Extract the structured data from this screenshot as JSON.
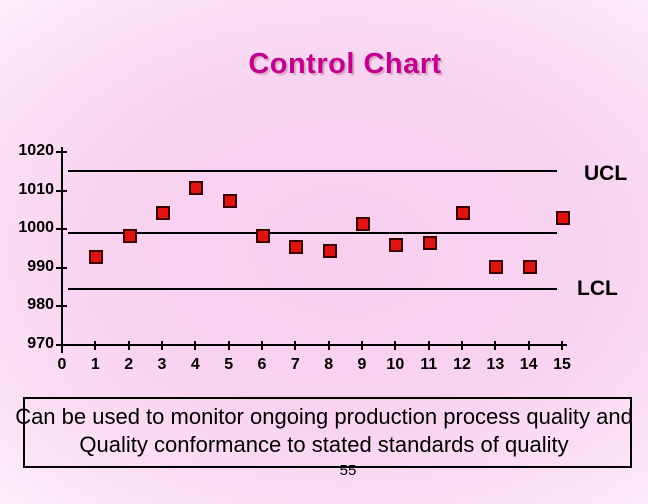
{
  "slide": {
    "title": "Control Chart",
    "caption_line1": "Can be used to monitor ongoing production process quality and",
    "caption_line2": "Quality conformance to stated standards of quality",
    "page_number": "55"
  },
  "chart_data": {
    "type": "scatter",
    "title": "Control Chart",
    "xlabel": "",
    "ylabel": "",
    "x": [
      1,
      2,
      3,
      4,
      5,
      6,
      7,
      8,
      9,
      10,
      11,
      12,
      13,
      14,
      15
    ],
    "values": [
      993,
      998.5,
      1004.5,
      1011,
      1007.5,
      998.5,
      995.5,
      994.5,
      1001.5,
      996,
      996.5,
      1004.5,
      990.5,
      990.5,
      1003
    ],
    "ucl": {
      "label": "UCL",
      "value": 1015
    },
    "center_line": {
      "value": 999
    },
    "lcl": {
      "label": "LCL",
      "value": 984.5
    },
    "y_ticks": [
      1020,
      1010,
      1000,
      990,
      980,
      970
    ],
    "x_ticks": [
      0,
      1,
      2,
      3,
      4,
      5,
      6,
      7,
      8,
      9,
      10,
      11,
      12,
      13,
      14,
      15
    ],
    "ylim": [
      970,
      1020
    ],
    "xlim": [
      0,
      15
    ],
    "grid": false,
    "legend": false,
    "marker": "square",
    "marker_color": "#e01212",
    "marker_border_color": "#3b0000",
    "line_color": "#000000"
  },
  "colors": {
    "title": "#c2008e",
    "title_shadow": "#d9a8c9",
    "background_center": "#f7cfee",
    "background_edge": "#ffffff",
    "text": "#000000"
  }
}
